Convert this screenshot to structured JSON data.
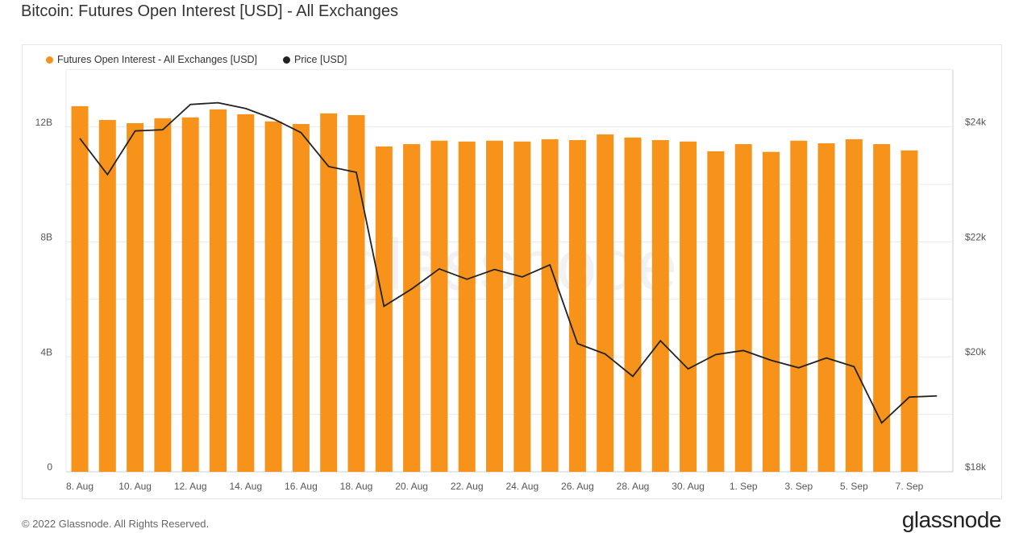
{
  "title": "Bitcoin: Futures Open Interest [USD] - All Exchanges",
  "footer": "© 2022 Glassnode. All Rights Reserved.",
  "logo": "glassnode",
  "watermark": "glassnode",
  "colors": {
    "bars": "#f7931a",
    "price": "#222222"
  },
  "chart_data": {
    "type": "bar",
    "title": "Bitcoin: Futures Open Interest [USD] - All Exchanges",
    "legend": [
      "Futures Open Interest - All Exchanges [USD]",
      "Price [USD]"
    ],
    "legend_placement": "top-left",
    "categories": [
      "8 Aug",
      "9 Aug",
      "10 Aug",
      "11 Aug",
      "12 Aug",
      "13 Aug",
      "14 Aug",
      "15 Aug",
      "16 Aug",
      "17 Aug",
      "18 Aug",
      "19 Aug",
      "20 Aug",
      "21 Aug",
      "22 Aug",
      "23 Aug",
      "24 Aug",
      "25 Aug",
      "26 Aug",
      "27 Aug",
      "28 Aug",
      "29 Aug",
      "30 Aug",
      "31 Aug",
      "1 Sep",
      "2 Sep",
      "3 Sep",
      "4 Sep",
      "5 Sep",
      "6 Sep",
      "7 Sep",
      "8 Sep"
    ],
    "series": [
      {
        "name": "Futures Open Interest - All Exchanges [USD]",
        "type": "bar",
        "axis": "left",
        "unit": "B USD",
        "values": [
          12.73,
          12.25,
          12.14,
          12.31,
          12.34,
          12.62,
          12.45,
          12.2,
          12.11,
          12.48,
          12.42,
          11.33,
          11.41,
          11.53,
          11.5,
          11.53,
          11.5,
          11.58,
          11.55,
          11.75,
          11.64,
          11.55,
          11.5,
          11.16,
          11.41,
          11.14,
          11.53,
          11.44,
          11.58,
          11.41,
          11.19,
          null
        ]
      },
      {
        "name": "Price [USD]",
        "type": "line",
        "axis": "right",
        "unit": "k USD",
        "values": [
          23.8,
          23.17,
          23.93,
          23.95,
          24.39,
          24.42,
          24.32,
          24.14,
          23.9,
          23.31,
          23.21,
          20.88,
          21.18,
          21.53,
          21.35,
          21.52,
          21.39,
          21.6,
          20.23,
          20.05,
          19.66,
          20.28,
          19.79,
          20.04,
          20.11,
          19.94,
          19.81,
          19.98,
          19.83,
          18.85,
          19.3,
          19.32
        ]
      }
    ],
    "x_tick_labels": [
      "8. Aug",
      "10. Aug",
      "12. Aug",
      "14. Aug",
      "16. Aug",
      "18. Aug",
      "20. Aug",
      "22. Aug",
      "24. Aug",
      "26. Aug",
      "28. Aug",
      "30. Aug",
      "1. Sep",
      "3. Sep",
      "5. Sep",
      "7. Sep"
    ],
    "y_left": {
      "ticks": [
        0,
        4,
        8,
        12
      ],
      "labels": [
        "0",
        "4B",
        "8B",
        "12B"
      ],
      "range": [
        0,
        14
      ]
    },
    "y_right": {
      "ticks": [
        18,
        20,
        22,
        24
      ],
      "labels": [
        "$18k",
        "$20k",
        "$22k",
        "$24k"
      ],
      "range": [
        18,
        25
      ]
    },
    "grid": true
  }
}
